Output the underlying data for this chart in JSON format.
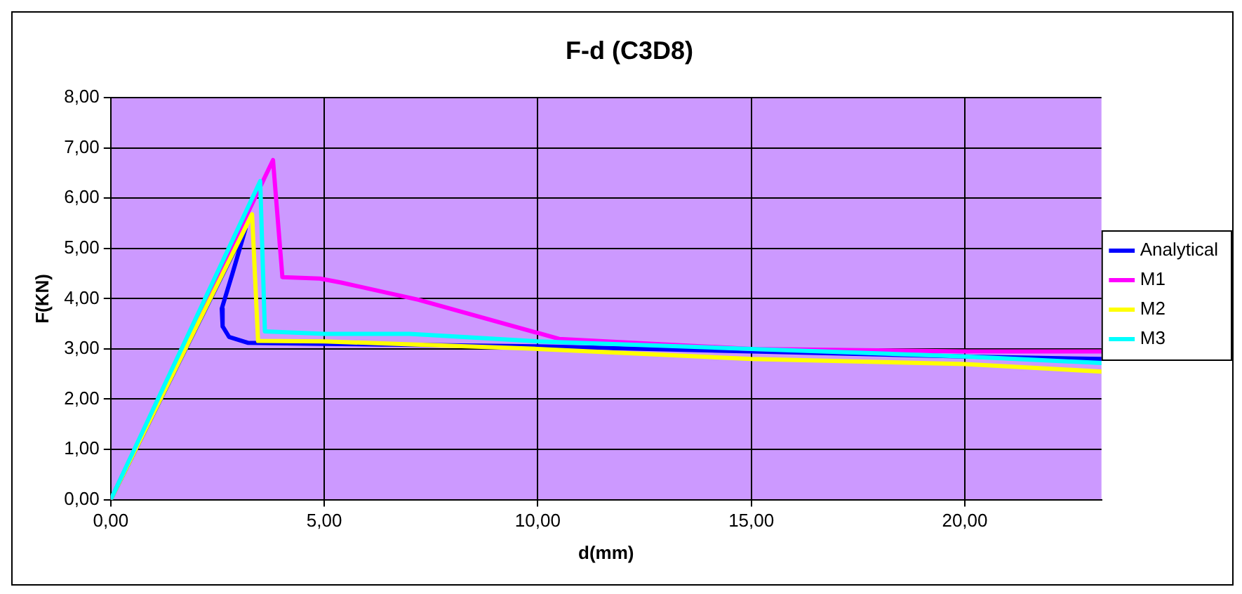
{
  "chart_data": {
    "type": "line",
    "title": "F-d (C3D8)",
    "xlabel": "d(mm)",
    "ylabel": "F(KN)",
    "xlim": [
      0,
      23.2
    ],
    "ylim": [
      0,
      8
    ],
    "xticks": [
      {
        "value": 0,
        "label": "0,00"
      },
      {
        "value": 5,
        "label": "5,00"
      },
      {
        "value": 10,
        "label": "10,00"
      },
      {
        "value": 15,
        "label": "15,00"
      },
      {
        "value": 20,
        "label": "20,00"
      }
    ],
    "yticks": [
      {
        "value": 0,
        "label": "0,00"
      },
      {
        "value": 1,
        "label": "1,00"
      },
      {
        "value": 2,
        "label": "2,00"
      },
      {
        "value": 3,
        "label": "3,00"
      },
      {
        "value": 4,
        "label": "4,00"
      },
      {
        "value": 5,
        "label": "5,00"
      },
      {
        "value": 6,
        "label": "6,00"
      },
      {
        "value": 7,
        "label": "7,00"
      },
      {
        "value": 8,
        "label": "8,00"
      }
    ],
    "grid": true,
    "legend": "right",
    "marker": "none",
    "line_style": "solid",
    "series": [
      {
        "name": "Analytical",
        "color": "#0000ff",
        "x": [
          0,
          3.16,
          2.85,
          2.6,
          2.62,
          2.77,
          3.22,
          5,
          10,
          15,
          20,
          23.2
        ],
        "values": [
          0,
          5.4,
          4.5,
          3.8,
          3.45,
          3.24,
          3.12,
          3.1,
          3.05,
          2.95,
          2.85,
          2.8
        ]
      },
      {
        "name": "M1",
        "color": "#ff00ff",
        "x": [
          0,
          3.8,
          4.02,
          4.9,
          5.4,
          7.2,
          10.5,
          15,
          20,
          23.2
        ],
        "values": [
          0,
          6.76,
          4.43,
          4.4,
          4.32,
          3.98,
          3.2,
          3.0,
          2.95,
          2.95
        ]
      },
      {
        "name": "M2",
        "color": "#ffff00",
        "x": [
          0,
          3.31,
          3.45,
          5,
          10,
          15,
          20,
          23.2
        ],
        "values": [
          0,
          5.68,
          3.16,
          3.15,
          3.0,
          2.8,
          2.7,
          2.55
        ]
      },
      {
        "name": "M3",
        "color": "#00ffff",
        "x": [
          0,
          3.5,
          3.61,
          5,
          7,
          10,
          15,
          20,
          23.2
        ],
        "values": [
          0,
          6.34,
          3.35,
          3.3,
          3.3,
          3.15,
          3.0,
          2.85,
          2.72
        ]
      }
    ]
  }
}
